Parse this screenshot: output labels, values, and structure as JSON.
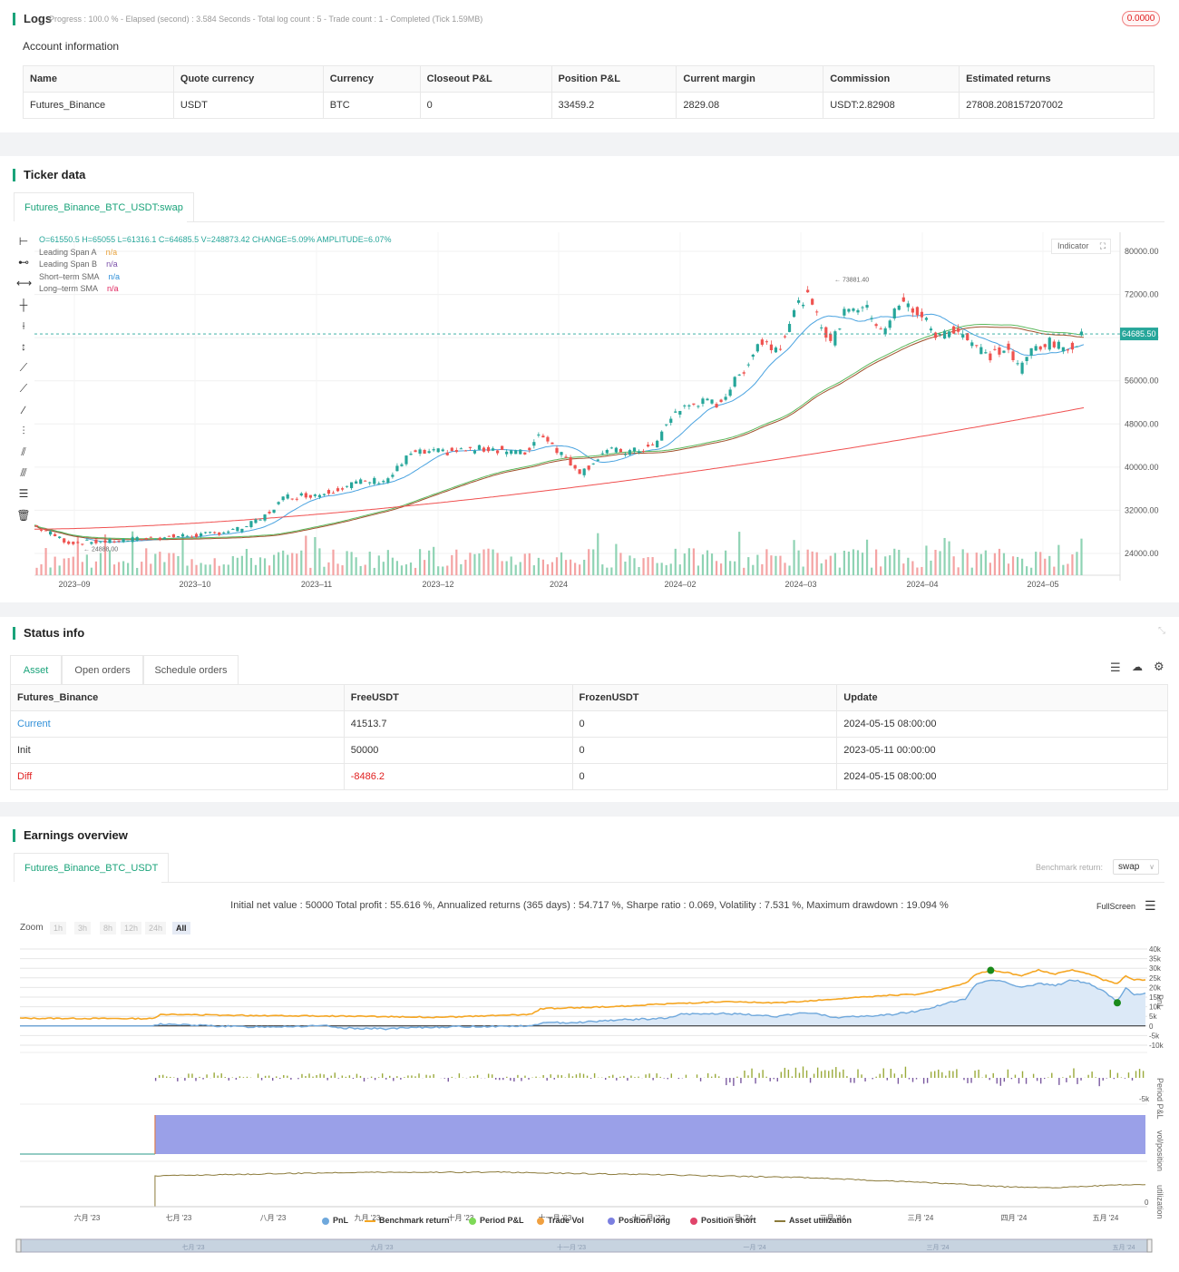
{
  "logs": {
    "title": "Logs",
    "progress": "Progress : 100.0 % - Elapsed (second) : 3.584  Seconds - Total log count : 5 - Trade count : 1 - Completed (Tick 1.59MB)",
    "badge": "0.0000",
    "account_title": "Account information",
    "columns": [
      "Name",
      "Quote currency",
      "Currency",
      "Closeout P&L",
      "Position P&L",
      "Current margin",
      "Commission",
      "Estimated returns"
    ],
    "row": [
      "Futures_Binance",
      "USDT",
      "BTC",
      "0",
      "33459.2",
      "2829.08",
      "USDT:2.82908",
      "27808.208157207002"
    ]
  },
  "ticker": {
    "title": "Ticker data",
    "tab": "Futures_Binance_BTC_USDT:swap",
    "ohlc": "O=61550.5 H=65055 L=61316.1 C=64685.5 V=248873.42 CHANGE=5.09% AMPLITUDE=6.07%",
    "indicators": [
      {
        "name": "Leading Span A",
        "value": "n/a",
        "color": "#e8a33d"
      },
      {
        "name": "Leading Span B",
        "value": "n/a",
        "color": "#7b4fa8"
      },
      {
        "name": "Short–term SMA",
        "value": "n/a",
        "color": "#2f8fd8"
      },
      {
        "name": "Long–term SMA",
        "value": "n/a",
        "color": "#e0245e"
      }
    ],
    "indicator_btn": "Indicator",
    "price_label": "64685.50",
    "high_label": "73881.40",
    "low_label": "24888.00",
    "y_ticks": [
      "80000.00",
      "72000.00",
      "64000.00",
      "56000.00",
      "48000.00",
      "40000.00",
      "32000.00",
      "24000.00"
    ],
    "x_ticks": [
      "2023–09",
      "2023–10",
      "2023–11",
      "2023–12",
      "2024",
      "2024–02",
      "2024–03",
      "2024–04",
      "2024–05"
    ],
    "colors": {
      "up": "#26a69a",
      "down": "#ef5350",
      "short_sma": "#4aa3e0",
      "long_sma": "#f05050",
      "span_a": "#5cb85c",
      "span_b": "#a0522d"
    }
  },
  "status": {
    "title": "Status info",
    "tabs": [
      "Asset",
      "Open orders",
      "Schedule orders"
    ],
    "columns": [
      "Futures_Binance",
      "FreeUSDT",
      "FrozenUSDT",
      "Update"
    ],
    "rows": [
      {
        "label": "Current",
        "free": "41513.7",
        "frozen": "0",
        "update": "2024-05-15 08:00:00",
        "color": "#2f8fd8"
      },
      {
        "label": "Init",
        "free": "50000",
        "frozen": "0",
        "update": "2023-05-11 00:00:00",
        "color": "#333333"
      },
      {
        "label": "Diff",
        "free": "-8486.2",
        "frozen": "0",
        "update": "2024-05-15 08:00:00",
        "color": "#e02020"
      }
    ]
  },
  "earnings": {
    "title": "Earnings overview",
    "tab": "Futures_Binance_BTC_USDT",
    "benchmark_label": "Benchmark return:",
    "benchmark_value": "swap",
    "summary": "Initial net value : 50000 Total profit : 55.616 %, Annualized returns (365 days) : 54.717 %, Sharpe ratio : 0.069, Volatility : 7.531 %, Maximum drawdown : 19.094 %",
    "fullscreen": "FullScreen",
    "zoom_label": "Zoom",
    "zoom_options": [
      "1h",
      "3h",
      "8h",
      "12h",
      "24h",
      "All"
    ],
    "pnl_ticks": [
      "40k",
      "35k",
      "30k",
      "25k",
      "20k",
      "15k",
      "10k",
      "5k",
      "0",
      "-5k",
      "-10k"
    ],
    "period_tick": "-5k",
    "util_tick": "0",
    "axis_labels": [
      "PnL",
      "Period P&L",
      "vol/position",
      "utilization"
    ],
    "x_ticks": [
      "六月 '23",
      "七月 '23",
      "八月 '23",
      "九月 '23",
      "十月 '23",
      "十一月 '23",
      "十二月 '23",
      "一月 '24",
      "二月 '24",
      "三月 '24",
      "四月 '24",
      "五月 '24"
    ],
    "nav_ticks": [
      "七月 '23",
      "九月 '23",
      "十一月 '23",
      "一月 '24",
      "三月 '24",
      "五月 '24"
    ],
    "legend": [
      {
        "name": "PnL",
        "color": "#6fa8dc",
        "shape": "dot"
      },
      {
        "name": "Benchmark return",
        "color": "#f5a623",
        "shape": "line"
      },
      {
        "name": "Period P&L",
        "color": "#7ed957",
        "shape": "dot"
      },
      {
        "name": "Trade Vol",
        "color": "#f0a040",
        "shape": "dot"
      },
      {
        "name": "Position long",
        "color": "#7b7fe0",
        "shape": "dot"
      },
      {
        "name": "Position short",
        "color": "#e0446a",
        "shape": "dot"
      },
      {
        "name": "Asset utilization",
        "color": "#8b7a3a",
        "shape": "line"
      }
    ]
  }
}
